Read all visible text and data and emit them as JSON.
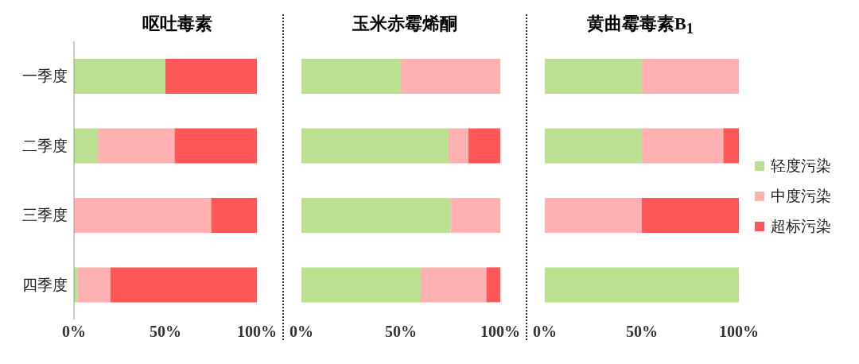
{
  "chart_data": [
    {
      "type": "bar",
      "title": "呕吐毒素",
      "orientation": "horizontal",
      "stacked": true,
      "categories": [
        "一季度",
        "二季度",
        "三季度",
        "四季度"
      ],
      "xlim": [
        0,
        100
      ],
      "xticks": [
        {
          "value": 0,
          "label": "0%"
        },
        {
          "value": 50,
          "label": "50%"
        },
        {
          "value": 100,
          "label": "100%"
        }
      ],
      "legend": false,
      "series": [
        {
          "color": "#bbe08f",
          "values": [
            50,
            13,
            0,
            2
          ]
        },
        {
          "color": "#ffb1b1",
          "values": [
            0,
            42,
            75,
            18
          ]
        },
        {
          "color": "#ff5757",
          "values": [
            50,
            45,
            25,
            80
          ]
        }
      ]
    },
    {
      "type": "bar",
      "title": "玉米赤霉烯酮",
      "orientation": "horizontal",
      "stacked": true,
      "categories": [
        null,
        null,
        null,
        null
      ],
      "xlim": [
        0,
        100
      ],
      "xticks": [
        {
          "value": 0,
          "label": "0%"
        },
        {
          "value": 50,
          "label": "50%"
        },
        {
          "value": 100,
          "label": "100%"
        }
      ],
      "legend": false,
      "tick_labels": "x",
      "series": [
        {
          "color": "#bbe08f",
          "values": [
            50,
            74,
            75,
            60
          ]
        },
        {
          "color": "#ffb1b1",
          "values": [
            50,
            10,
            25,
            33
          ]
        },
        {
          "color": "#ff5757",
          "values": [
            0,
            16,
            0,
            7
          ]
        }
      ]
    },
    {
      "type": "bar",
      "title": "黄曲霉毒素B$_{1}$",
      "orientation": "horizontal",
      "stacked": true,
      "categories": [
        null,
        null,
        null,
        null
      ],
      "xlim": [
        0,
        100
      ],
      "xticks": [
        {
          "value": 0,
          "label": "0%"
        },
        {
          "value": 50,
          "label": "50%"
        },
        {
          "value": 100,
          "label": "100%"
        }
      ],
      "legend": "right",
      "tick_labels": "x",
      "series": [
        {
          "name": "轻度污染",
          "color": "#bbe08f",
          "values": [
            50,
            50,
            0,
            100
          ]
        },
        {
          "name": "中度污染",
          "color": "#ffb1b1",
          "values": [
            50,
            42,
            50,
            0
          ]
        },
        {
          "name": "超标污染",
          "color": "#ff5757",
          "values": [
            0,
            8,
            50,
            0
          ]
        }
      ]
    }
  ]
}
